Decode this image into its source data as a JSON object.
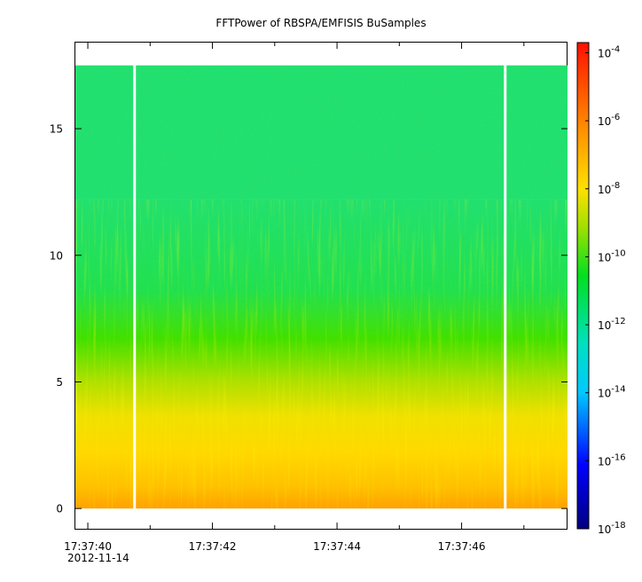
{
  "chart_data": {
    "type": "heatmap",
    "title": "FFTPower of RBSPA/EMFISIS  BuSamples",
    "y_ticks": [
      0,
      5,
      10,
      15
    ],
    "ylim": [
      -0.8,
      18.4
    ],
    "x_tick_labels": [
      "17:37:40",
      "17:37:42",
      "17:37:44",
      "17:37:46"
    ],
    "x_tick_seconds": [
      40,
      42,
      44,
      46
    ],
    "x_minor_seconds": [
      41,
      43,
      45,
      47
    ],
    "x_date_label": "2012-11-14",
    "xlim_seconds": [
      39.8,
      47.7
    ],
    "data_extent": {
      "x_seconds": [
        39.8,
        47.7
      ],
      "y": [
        0,
        17.5
      ]
    },
    "gaps_seconds": [
      40.75,
      46.7
    ],
    "colorbar": {
      "scale": "log",
      "range_exponents": [
        -18,
        -3.7
      ],
      "tick_exponents": [
        -4,
        -6,
        -8,
        -10,
        -12,
        -14,
        -16,
        -18
      ],
      "tick_labels": [
        "10-4",
        "10-6",
        "10-8",
        "10-10",
        "10-12",
        "10-14",
        "10-16",
        "10-18"
      ]
    },
    "colors": {
      "high": "#ff2000",
      "mid_high": "#ffd000",
      "mid": "#00e020",
      "mid_low": "#00e0e0",
      "low": "#000090"
    }
  }
}
